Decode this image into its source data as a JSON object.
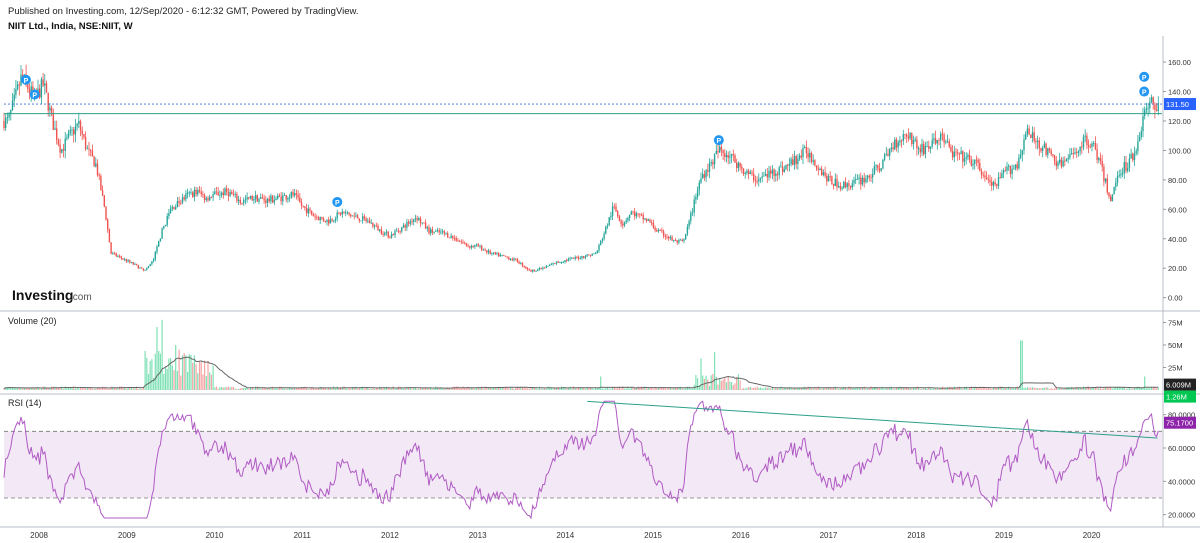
{
  "header": {
    "published": "Published on Investing.com, 12/Sep/2020 - 6:12:32 GMT, Powered by TradingView.",
    "symbol": "NIIT Ltd., India, NSE:NIIT, W"
  },
  "branding": {
    "logo_main": "Investing",
    "logo_suffix": ".com"
  },
  "colors": {
    "up": "#26a69a",
    "down": "#ef5350",
    "upVol": "#7ee0b4",
    "downVol": "#f5a3a3",
    "rsi": "#b05bc4",
    "rsiBand": "#f3e8f6",
    "hline": "#3a6fd8",
    "trend": "#2aa08a",
    "pmarker": "#2196f3",
    "priceTag": "#2962ff",
    "rsiTag": "#8e24aa",
    "volTag": "#00c853"
  },
  "chart_data": {
    "type": "candlestick",
    "x_axis": {
      "years": [
        "2008",
        "2009",
        "2010",
        "2011",
        "2012",
        "2013",
        "2014",
        "2015",
        "2016",
        "2017",
        "2018",
        "2019",
        "2020"
      ]
    },
    "price_panel": {
      "title": "NIIT Ltd., India, NSE:NIIT, W",
      "yticks": [
        "160.00",
        "140.00",
        "120.00",
        "100.00",
        "80.00",
        "60.00",
        "40.00",
        "20.00",
        "0.00"
      ],
      "ylim": [
        -5,
        175
      ],
      "last_price_label": "131.50",
      "last_price": 131.5,
      "resistance_level": 125,
      "markers": [
        {
          "label": "P",
          "t": 2007.85,
          "price": 148
        },
        {
          "label": "P",
          "t": 2007.95,
          "price": 138
        },
        {
          "label": "P",
          "t": 2011.4,
          "price": 65
        },
        {
          "label": "P",
          "t": 2015.75,
          "price": 107
        },
        {
          "label": "P",
          "t": 2020.6,
          "price": 150
        },
        {
          "label": "P",
          "t": 2020.6,
          "price": 140
        }
      ],
      "path": [
        [
          2007.65,
          120
        ],
        [
          2007.8,
          150
        ],
        [
          2007.95,
          135
        ],
        [
          2008.05,
          145
        ],
        [
          2008.15,
          120
        ],
        [
          2008.25,
          100
        ],
        [
          2008.35,
          110
        ],
        [
          2008.45,
          118
        ],
        [
          2008.55,
          100
        ],
        [
          2008.65,
          90
        ],
        [
          2008.75,
          60
        ],
        [
          2008.82,
          30
        ],
        [
          2008.9,
          28
        ],
        [
          2009.0,
          25
        ],
        [
          2009.1,
          22
        ],
        [
          2009.2,
          18
        ],
        [
          2009.3,
          25
        ],
        [
          2009.4,
          45
        ],
        [
          2009.5,
          60
        ],
        [
          2009.6,
          65
        ],
        [
          2009.7,
          70
        ],
        [
          2009.8,
          72
        ],
        [
          2009.9,
          68
        ],
        [
          2010.0,
          70
        ],
        [
          2010.15,
          72
        ],
        [
          2010.3,
          65
        ],
        [
          2010.45,
          68
        ],
        [
          2010.6,
          66
        ],
        [
          2010.75,
          68
        ],
        [
          2010.9,
          70
        ],
        [
          2011.0,
          62
        ],
        [
          2011.15,
          55
        ],
        [
          2011.3,
          52
        ],
        [
          2011.45,
          58
        ],
        [
          2011.6,
          55
        ],
        [
          2011.75,
          52
        ],
        [
          2011.9,
          45
        ],
        [
          2012.0,
          42
        ],
        [
          2012.15,
          48
        ],
        [
          2012.3,
          55
        ],
        [
          2012.45,
          45
        ],
        [
          2012.6,
          44
        ],
        [
          2012.75,
          40
        ],
        [
          2012.9,
          35
        ],
        [
          2013.0,
          35
        ],
        [
          2013.15,
          30
        ],
        [
          2013.3,
          28
        ],
        [
          2013.45,
          25
        ],
        [
          2013.6,
          18
        ],
        [
          2013.75,
          20
        ],
        [
          2013.9,
          24
        ],
        [
          2014.05,
          26
        ],
        [
          2014.2,
          28
        ],
        [
          2014.35,
          30
        ],
        [
          2014.45,
          45
        ],
        [
          2014.55,
          62
        ],
        [
          2014.65,
          50
        ],
        [
          2014.75,
          58
        ],
        [
          2014.85,
          55
        ],
        [
          2014.95,
          52
        ],
        [
          2015.05,
          45
        ],
        [
          2015.15,
          42
        ],
        [
          2015.25,
          38
        ],
        [
          2015.35,
          38
        ],
        [
          2015.45,
          60
        ],
        [
          2015.55,
          82
        ],
        [
          2015.65,
          90
        ],
        [
          2015.75,
          100
        ],
        [
          2015.85,
          98
        ],
        [
          2015.95,
          92
        ],
        [
          2016.05,
          85
        ],
        [
          2016.2,
          80
        ],
        [
          2016.35,
          85
        ],
        [
          2016.5,
          88
        ],
        [
          2016.65,
          95
        ],
        [
          2016.75,
          100
        ],
        [
          2016.9,
          88
        ],
        [
          2017.0,
          80
        ],
        [
          2017.15,
          76
        ],
        [
          2017.3,
          78
        ],
        [
          2017.45,
          82
        ],
        [
          2017.6,
          90
        ],
        [
          2017.75,
          105
        ],
        [
          2017.9,
          112
        ],
        [
          2018.05,
          100
        ],
        [
          2018.2,
          105
        ],
        [
          2018.3,
          110
        ],
        [
          2018.4,
          98
        ],
        [
          2018.55,
          95
        ],
        [
          2018.7,
          90
        ],
        [
          2018.8,
          80
        ],
        [
          2018.9,
          75
        ],
        [
          2019.0,
          85
        ],
        [
          2019.15,
          90
        ],
        [
          2019.25,
          112
        ],
        [
          2019.4,
          105
        ],
        [
          2019.55,
          95
        ],
        [
          2019.65,
          90
        ],
        [
          2019.75,
          95
        ],
        [
          2019.85,
          102
        ],
        [
          2019.95,
          108
        ],
        [
          2020.05,
          100
        ],
        [
          2020.15,
          80
        ],
        [
          2020.22,
          65
        ],
        [
          2020.3,
          85
        ],
        [
          2020.4,
          90
        ],
        [
          2020.5,
          100
        ],
        [
          2020.6,
          125
        ],
        [
          2020.67,
          131.5
        ]
      ]
    },
    "volume_panel": {
      "title": "Volume (20)",
      "yticks": [
        "75M",
        "50M",
        "25M"
      ],
      "ylim": [
        0,
        80
      ],
      "last_labels": [
        "6.009M",
        "1.26M"
      ],
      "spikes": [
        [
          2009.35,
          70
        ],
        [
          2009.4,
          78
        ],
        [
          2009.55,
          50
        ],
        [
          2015.55,
          35
        ],
        [
          2015.7,
          42
        ],
        [
          2019.2,
          55
        ],
        [
          2014.4,
          15
        ],
        [
          2020.6,
          15
        ]
      ]
    },
    "rsi_panel": {
      "title": "RSI (14)",
      "yticks": [
        "80.0000",
        "60.0000",
        "40.0000",
        "20.0000"
      ],
      "ylim": [
        15,
        90
      ],
      "band": [
        30,
        70
      ],
      "last_label": "75.1700",
      "last_value": 75.17,
      "trendline": [
        [
          2014.25,
          88
        ],
        [
          2020.75,
          66
        ]
      ]
    }
  }
}
